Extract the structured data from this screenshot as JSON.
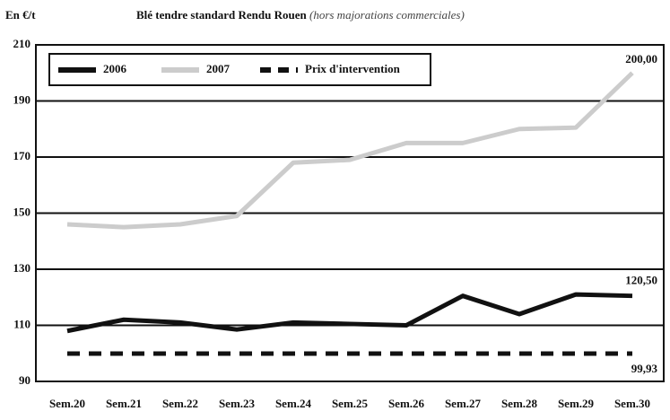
{
  "chart_data": {
    "type": "line",
    "title": "Blé tendre standard Rendu Rouen",
    "subtitle": "(hors majorations commerciales)",
    "y_label": "En €/t",
    "categories": [
      "Sem.20",
      "Sem.21",
      "Sem.22",
      "Sem.23",
      "Sem.24",
      "Sem.25",
      "Sem.26",
      "Sem.27",
      "Sem.28",
      "Sem.29",
      "Sem.30"
    ],
    "series": [
      {
        "name": "2006",
        "color": "#111111",
        "linestyle": "solid",
        "values": [
          108,
          112,
          111,
          108.5,
          111,
          110.5,
          110,
          120.5,
          114,
          121,
          120.5
        ],
        "value_labels": [
          null,
          null,
          null,
          null,
          null,
          null,
          null,
          null,
          null,
          null,
          "120,50"
        ]
      },
      {
        "name": "2007",
        "color": "#cccccc",
        "linestyle": "solid",
        "values": [
          146,
          145,
          146,
          149,
          168,
          169,
          175,
          175,
          180,
          180.5,
          200
        ],
        "value_labels": [
          null,
          null,
          null,
          null,
          null,
          null,
          null,
          null,
          null,
          null,
          "200,00"
        ]
      },
      {
        "name": "Prix d'intervention",
        "color": "#111111",
        "linestyle": "dashed",
        "values": [
          99.93,
          99.93,
          99.93,
          99.93,
          99.93,
          99.93,
          99.93,
          99.93,
          99.93,
          99.93,
          99.93
        ],
        "value_labels": [
          null,
          null,
          null,
          null,
          null,
          null,
          null,
          null,
          null,
          null,
          "99,93"
        ]
      }
    ],
    "ylim": [
      90,
      210
    ],
    "yticks": [
      90,
      110,
      130,
      150,
      170,
      190,
      210
    ],
    "grid": true,
    "legend": "upper left"
  }
}
